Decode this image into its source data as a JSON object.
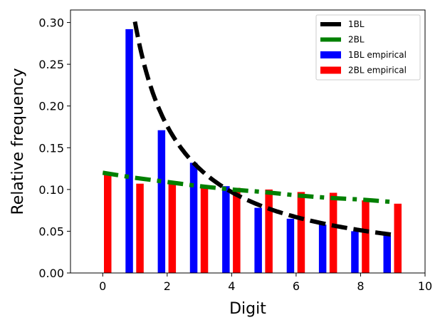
{
  "chart_data": {
    "type": "bar",
    "title": "",
    "xlabel": "Digit",
    "ylabel": "Relative frequency",
    "xlim": [
      -1,
      10
    ],
    "ylim": [
      0,
      0.315
    ],
    "xticks": [
      0,
      2,
      4,
      6,
      8,
      10
    ],
    "yticks": [
      0.0,
      0.05,
      0.1,
      0.15,
      0.2,
      0.25,
      0.3
    ],
    "ytick_labels": [
      "0.00",
      "0.05",
      "0.10",
      "0.15",
      "0.20",
      "0.25",
      "0.30"
    ],
    "grid": false,
    "legend_position": "top-right",
    "bar_series": [
      {
        "name": "1BL empirical",
        "color": "#0000ff",
        "x": [
          1,
          2,
          3,
          4,
          5,
          6,
          7,
          8,
          9
        ],
        "values": [
          0.292,
          0.171,
          0.132,
          0.104,
          0.078,
          0.065,
          0.058,
          0.05,
          0.045
        ]
      },
      {
        "name": "2BL empirical",
        "color": "#ff0000",
        "x": [
          0,
          1,
          2,
          3,
          4,
          5,
          6,
          7,
          8,
          9
        ],
        "values": [
          0.118,
          0.107,
          0.107,
          0.104,
          0.102,
          0.1,
          0.097,
          0.096,
          0.087,
          0.083
        ]
      }
    ],
    "line_series": [
      {
        "name": "1BL",
        "color": "#000000",
        "style": "dashed",
        "x": [
          1,
          2,
          3,
          4,
          5,
          6,
          7,
          8,
          9
        ],
        "values": [
          0.301,
          0.176,
          0.125,
          0.097,
          0.079,
          0.067,
          0.058,
          0.051,
          0.046
        ]
      },
      {
        "name": "2BL",
        "color": "#008000",
        "style": "dashdot",
        "x": [
          0,
          1,
          2,
          3,
          4,
          5,
          6,
          7,
          8,
          9
        ],
        "values": [
          0.12,
          0.114,
          0.109,
          0.104,
          0.1,
          0.097,
          0.093,
          0.09,
          0.088,
          0.085
        ]
      }
    ],
    "legend": [
      "1BL",
      "2BL",
      "1BL empirical",
      "2BL empirical"
    ]
  }
}
